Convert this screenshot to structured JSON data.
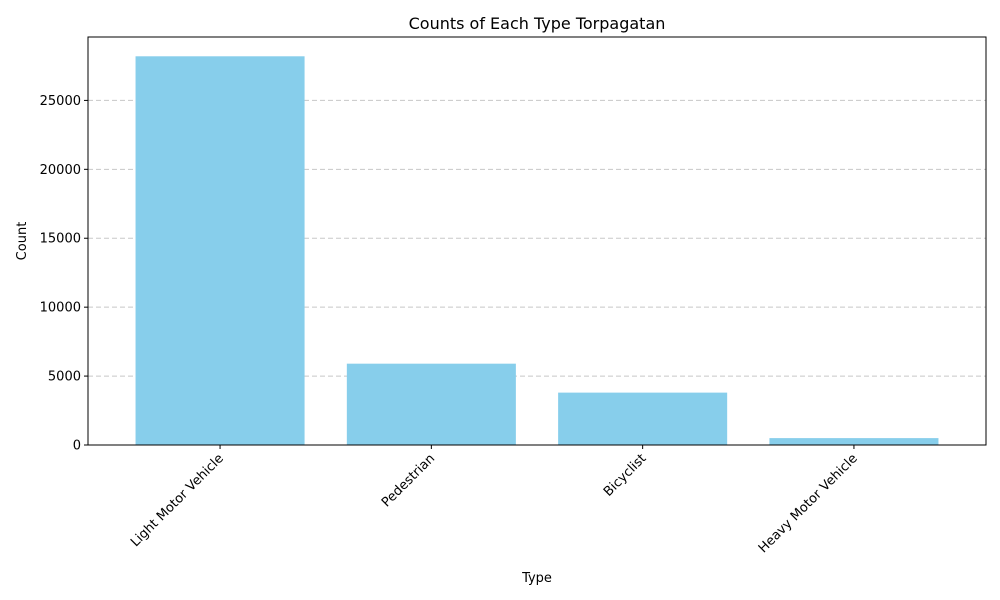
{
  "chart_data": {
    "type": "bar",
    "title": "Counts of Each Type Torpagatan",
    "xlabel": "Type",
    "ylabel": "Count",
    "categories": [
      "Light Motor Vehicle",
      "Pedestrian",
      "Bicyclist",
      "Heavy Motor Vehicle"
    ],
    "values": [
      28200,
      5900,
      3800,
      500
    ],
    "ylim": [
      0,
      29600
    ],
    "yticks": [
      0,
      5000,
      10000,
      15000,
      20000,
      25000
    ],
    "grid": "y-dashed",
    "bar_color": "#87ceeb",
    "grid_color": "#c8c8c8",
    "x_tick_rotation": "45"
  }
}
